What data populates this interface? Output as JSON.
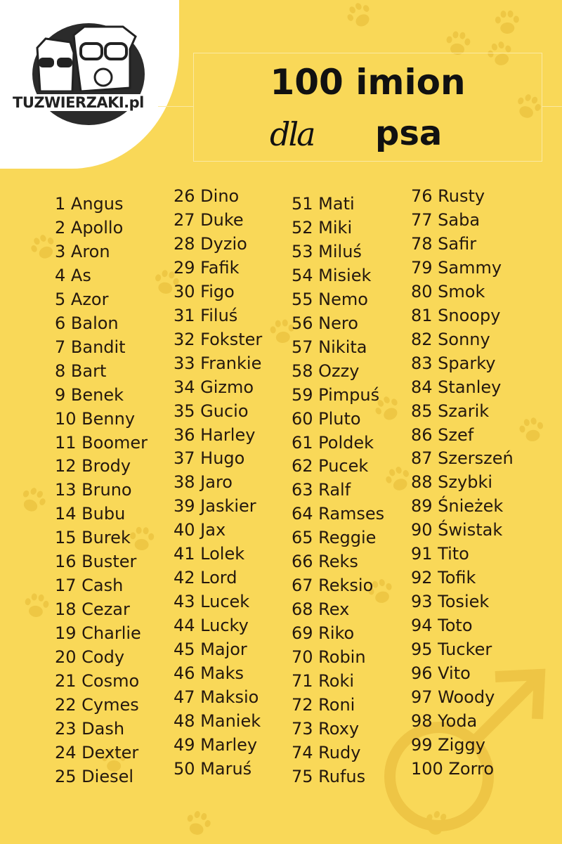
{
  "logo": {
    "text": "TUZWIERZAKI.pl"
  },
  "title": {
    "line1": "100 imion",
    "script_word": "dla",
    "word": "psa"
  },
  "colors": {
    "background": "#f9d858",
    "text": "#24180e",
    "paw": "#e9c23e"
  },
  "icons": [
    "paw-print-icon",
    "male-symbol-icon",
    "cat-and-dog-logo-icon"
  ],
  "columns": [
    [
      "1 Angus",
      "2 Apollo",
      "3 Aron",
      "4 As",
      "5 Azor",
      "6 Balon",
      "7 Bandit",
      "8 Bart",
      "9 Benek",
      "10 Benny",
      "11 Boomer",
      "12 Brody",
      "13 Bruno",
      "14 Bubu",
      "15 Burek",
      "16 Buster",
      "17 Cash",
      "18 Cezar",
      "19 Charlie",
      "20 Cody",
      "21 Cosmo",
      "22 Cymes",
      "23 Dash",
      "24 Dexter",
      "25 Diesel"
    ],
    [
      "26 Dino",
      "27 Duke",
      "28 Dyzio",
      "29 Fafik",
      "30 Figo",
      "31 Filuś",
      "32 Fokster",
      "33 Frankie",
      "34 Gizmo",
      "35 Gucio",
      "36 Harley",
      "37 Hugo",
      "38 Jaro",
      "39 Jaskier",
      "40 Jax",
      "41 Lolek",
      "42 Lord",
      "43 Lucek",
      "44 Lucky",
      "45 Major",
      "46 Maks",
      "47 Maksio",
      "48 Maniek",
      "49 Marley",
      "50 Maruś"
    ],
    [
      "51 Mati",
      "52 Miki",
      "53 Miluś",
      "54 Misiek",
      "55 Nemo",
      "56 Nero",
      "57 Nikita",
      "58 Ozzy",
      "59 Pimpuś",
      "60 Pluto",
      "61 Poldek",
      "62 Pucek",
      "63 Ralf",
      "64 Ramses",
      "65 Reggie",
      "66 Reks",
      "67 Reksio",
      "68 Rex",
      "69 Riko",
      "70 Robin",
      "71 Roki",
      "72 Roni",
      "73 Roxy",
      "74 Rudy",
      "75 Rufus"
    ],
    [
      "76 Rusty",
      "77 Saba",
      "78 Safir",
      "79 Sammy",
      "80 Smok",
      "81 Snoopy",
      "82 Sonny",
      "83 Sparky",
      "84 Stanley",
      "85 Szarik",
      "86 Szef",
      "87 Szerszeń",
      "88 Szybki",
      "89 Śnieżek",
      "90 Świstak",
      "91 Tito",
      "92 Tofik",
      "93 Tosiek",
      "94 Toto",
      "95 Tucker",
      "96 Vito",
      "97 Woody",
      "98 Yoda",
      "99 Ziggy",
      "100 Zorro"
    ]
  ]
}
